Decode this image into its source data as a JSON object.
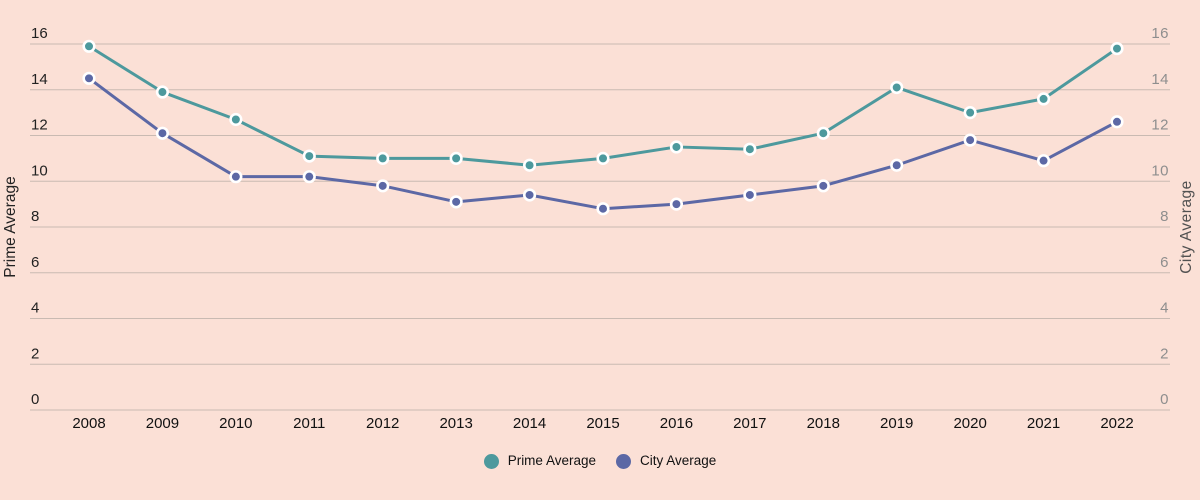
{
  "chart_data": {
    "type": "line",
    "x": [
      2008,
      2009,
      2010,
      2011,
      2012,
      2013,
      2014,
      2015,
      2016,
      2017,
      2018,
      2019,
      2020,
      2021,
      2022
    ],
    "series": [
      {
        "name": "Prime Average",
        "color": "#4d999d",
        "axis": "left",
        "values": [
          15.9,
          13.9,
          12.7,
          11.1,
          11.0,
          11.0,
          10.7,
          11.0,
          11.5,
          11.4,
          12.1,
          14.1,
          13.0,
          13.6,
          15.8
        ]
      },
      {
        "name": "City Average",
        "color": "#5c68a5",
        "axis": "right",
        "values": [
          14.5,
          12.1,
          10.2,
          10.2,
          9.8,
          9.1,
          9.4,
          8.8,
          9.0,
          9.4,
          9.8,
          10.7,
          11.8,
          10.9,
          12.6
        ]
      }
    ],
    "ylabel_left": "Prime Average",
    "ylabel_right": "City Average",
    "yticks": [
      0,
      2,
      4,
      6,
      8,
      10,
      12,
      14,
      16
    ],
    "ylim": [
      0,
      16
    ],
    "grid": true,
    "legend_position": "bottom",
    "colors": {
      "background": "#fbe0d6",
      "gridline": "#c9bab2",
      "tick_left": "#222222",
      "tick_right": "#8e8e8e",
      "xtick": "#111111",
      "axis_title_left": "#222222",
      "axis_title_right": "#515151",
      "marker_ring": "#ffffff"
    }
  }
}
